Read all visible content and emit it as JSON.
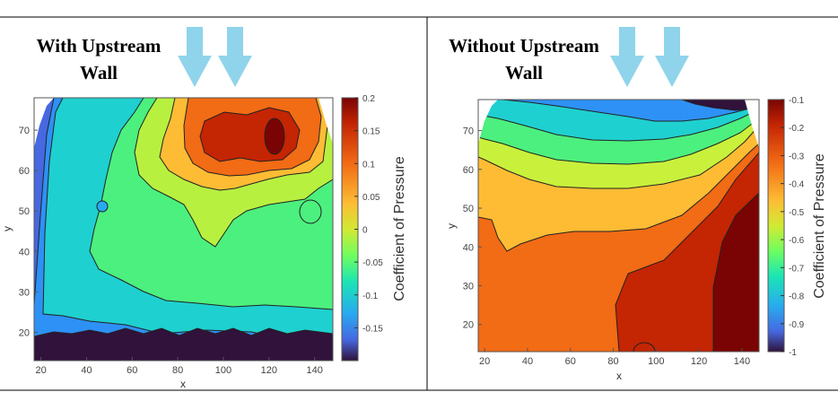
{
  "chart_data": [
    {
      "type": "heatmap",
      "title_lines": [
        "With Upstream",
        "Wall"
      ],
      "xlabel": "x",
      "ylabel": "y",
      "xlim": [
        17,
        148
      ],
      "ylim": [
        13,
        78
      ],
      "xticks": [
        "20",
        "40",
        "60",
        "80",
        "100",
        "120",
        "140"
      ],
      "yticks": [
        "20",
        "30",
        "40",
        "50",
        "60",
        "70"
      ],
      "colorbar": {
        "label": "Coefficient of Pressure",
        "range": [
          -0.2,
          0.2
        ],
        "ticks": [
          "0.2",
          "0.15",
          "0.1",
          "0.05",
          "0",
          "-0.05",
          "-0.1",
          "-0.15"
        ]
      },
      "arrows": 2
    },
    {
      "type": "heatmap",
      "title_lines": [
        "Without Upstream",
        "Wall"
      ],
      "xlabel": "x",
      "ylabel": "y",
      "xlim": [
        17,
        148
      ],
      "ylim": [
        13,
        78
      ],
      "xticks": [
        "20",
        "40",
        "60",
        "80",
        "100",
        "120",
        "140"
      ],
      "yticks": [
        "20",
        "30",
        "40",
        "50",
        "60",
        "70"
      ],
      "colorbar": {
        "label": "Coefficient of Pressure",
        "range": [
          -1.0,
          -0.1
        ],
        "ticks": [
          "-0.1",
          "-0.2",
          "-0.3",
          "-0.4",
          "-0.5",
          "-0.6",
          "-0.7",
          "-0.8",
          "-0.9",
          "-1"
        ]
      },
      "arrows": 2
    }
  ]
}
